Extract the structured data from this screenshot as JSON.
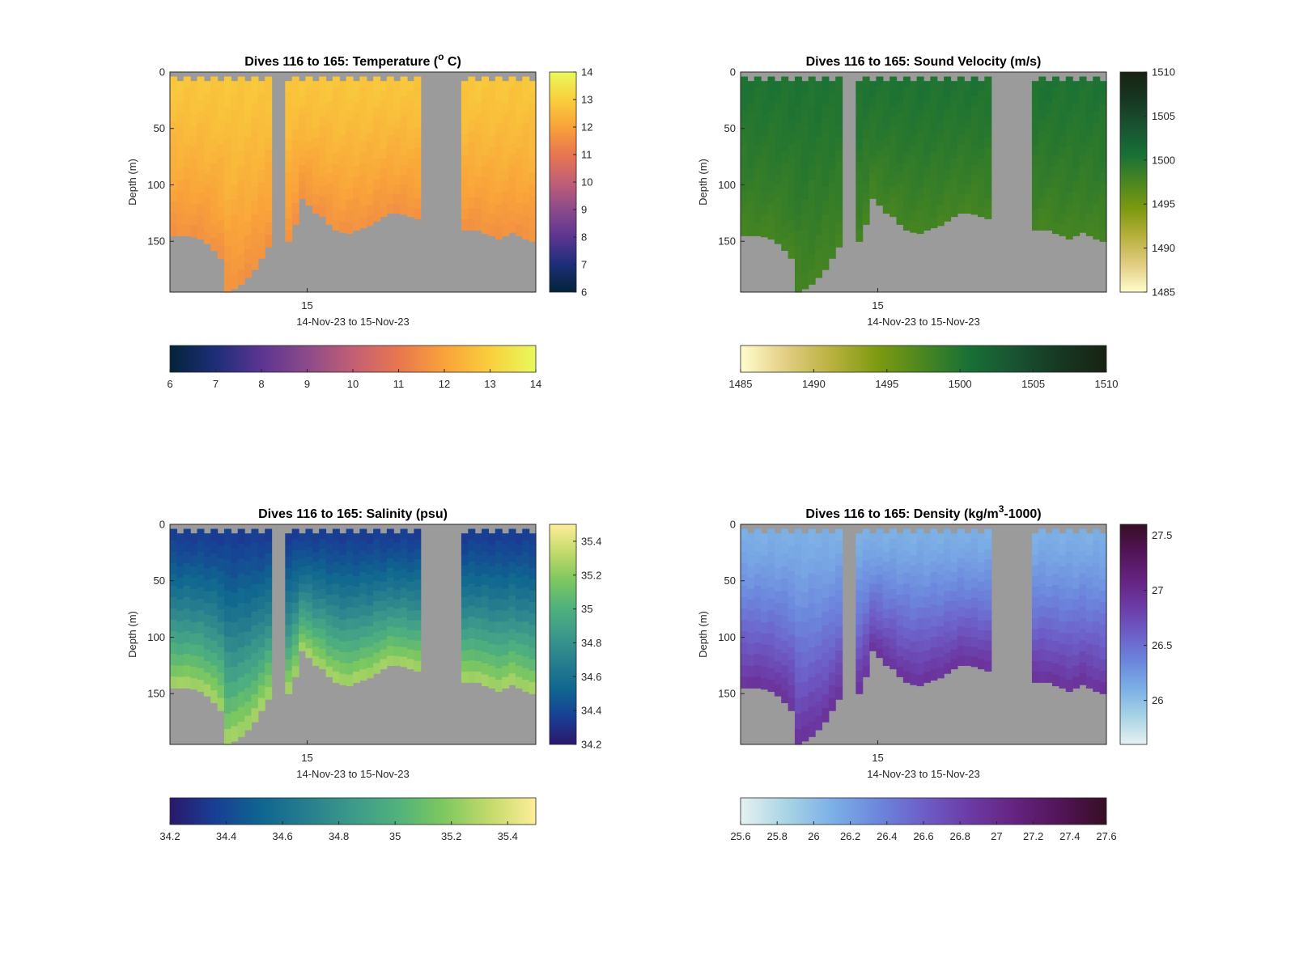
{
  "figure": {
    "background": "#ffffff",
    "mask_color": "#9b9b9b"
  },
  "chart_data": [
    {
      "type": "heatmap",
      "panel": "top-left",
      "title": "Dives 116 to 165: Temperature (°C)",
      "title_parts": [
        "Dives 116 to 165: Temperature (",
        "o",
        " C)"
      ],
      "xlabel": "14-Nov-23 to 15-Nov-23",
      "ylabel": "Depth (m)",
      "x_ticks": [
        "15"
      ],
      "y_ticks": [
        "0",
        "50",
        "100",
        "150"
      ],
      "ylim": [
        0,
        195
      ],
      "y_reversed": true,
      "colormap": "thermal",
      "clim": [
        6,
        14
      ],
      "colorbar_v_ticks": [
        "6",
        "7",
        "8",
        "9",
        "10",
        "11",
        "12",
        "13",
        "14"
      ],
      "colorbar_h_ticks": [
        "6",
        "7",
        "8",
        "9",
        "10",
        "11",
        "12",
        "13",
        "14"
      ],
      "surface_value": 12.8,
      "bottom_value": 11.6,
      "gap_dives": [
        116,
        117
      ],
      "bottom_depth": [
        145,
        145,
        145,
        146,
        148,
        152,
        158,
        165,
        195,
        192,
        188,
        182,
        175,
        165,
        155,
        150,
        145,
        150,
        135,
        112,
        118,
        125,
        128,
        135,
        140,
        142,
        143,
        140,
        138,
        136,
        132,
        128,
        125,
        125,
        126,
        128,
        130,
        135,
        138,
        140,
        142,
        143,
        140,
        140,
        140,
        140,
        143,
        145,
        148,
        145,
        142,
        145,
        148,
        150
      ],
      "gap_columns": [
        [
          15,
          16
        ],
        [
          37,
          42
        ]
      ]
    },
    {
      "type": "heatmap",
      "panel": "top-right",
      "title": "Dives 116 to 165: Sound Velocity (m/s)",
      "xlabel": "14-Nov-23 to 15-Nov-23",
      "ylabel": "Depth (m)",
      "x_ticks": [
        "15"
      ],
      "y_ticks": [
        "0",
        "50",
        "100",
        "150"
      ],
      "ylim": [
        0,
        195
      ],
      "y_reversed": true,
      "colormap": "speed",
      "clim": [
        1485,
        1510
      ],
      "colorbar_v_ticks": [
        "1485",
        "1490",
        "1495",
        "1500",
        "1505",
        "1510"
      ],
      "colorbar_h_ticks": [
        "1485",
        "1490",
        "1495",
        "1500",
        "1505",
        "1510"
      ],
      "surface_value": 1500.2,
      "bottom_value": 1497.8
    },
    {
      "type": "heatmap",
      "panel": "bottom-left",
      "title": "Dives 116 to 165: Salinity (psu)",
      "xlabel": "14-Nov-23 to 15-Nov-23",
      "ylabel": "Depth (m)",
      "x_ticks": [
        "15"
      ],
      "y_ticks": [
        "0",
        "50",
        "100",
        "150"
      ],
      "ylim": [
        0,
        195
      ],
      "y_reversed": true,
      "colormap": "haline",
      "clim": [
        34.2,
        35.5
      ],
      "colorbar_v_ticks": [
        "34.2",
        "34.4",
        "34.6",
        "34.8",
        "35",
        "35.2",
        "35.4"
      ],
      "colorbar_h_ticks": [
        "34.2",
        "34.4",
        "34.6",
        "34.8",
        "35",
        "35.2",
        "35.4"
      ],
      "surface_value": 34.35,
      "bottom_value": 35.3
    },
    {
      "type": "heatmap",
      "panel": "bottom-right",
      "title": "Dives 116 to 165: Density (kg/m³-1000)",
      "title_parts": [
        "Dives 116 to 165: Density (kg/m",
        "3",
        "-1000)"
      ],
      "xlabel": "14-Nov-23 to 15-Nov-23",
      "ylabel": "Depth (m)",
      "x_ticks": [
        "15"
      ],
      "y_ticks": [
        "0",
        "50",
        "100",
        "150"
      ],
      "ylim": [
        0,
        195
      ],
      "y_reversed": true,
      "colormap": "dense",
      "clim": [
        25.6,
        27.6
      ],
      "colorbar_v_ticks": [
        "26",
        "26.5",
        "27",
        "27.5"
      ],
      "colorbar_h_ticks": [
        "25.6",
        "25.8",
        "26",
        "26.2",
        "26.4",
        "26.6",
        "26.8",
        "27",
        "27.2",
        "27.4",
        "27.6"
      ],
      "surface_value": 26.1,
      "bottom_value": 26.95
    }
  ]
}
